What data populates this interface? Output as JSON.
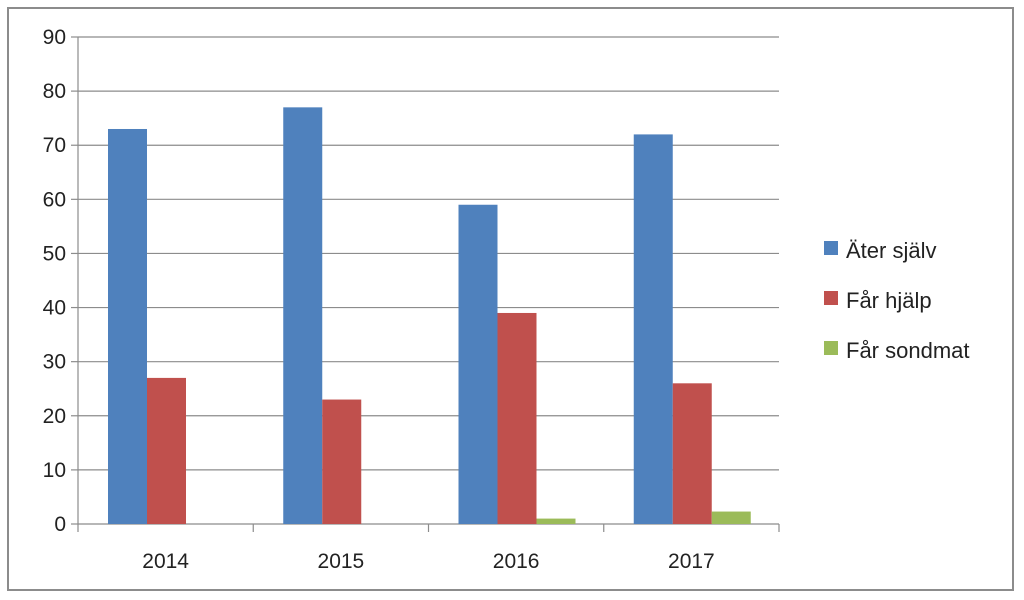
{
  "chart_data": {
    "type": "bar",
    "title": "",
    "xlabel": "",
    "ylabel": "",
    "categories": [
      "2014",
      "2015",
      "2016",
      "2017"
    ],
    "series": [
      {
        "name": "Äter själv",
        "color": "#4f81bd",
        "values": [
          73,
          77,
          59,
          72
        ]
      },
      {
        "name": "Får hjälp",
        "color": "#c0504d",
        "values": [
          27,
          23,
          39,
          26
        ]
      },
      {
        "name": "Får sondmat",
        "color": "#9bbb59",
        "values": [
          0,
          0,
          1,
          2.3
        ]
      }
    ],
    "ylim": [
      0,
      90
    ],
    "yticks": [
      0,
      10,
      20,
      30,
      40,
      50,
      60,
      70,
      80,
      90
    ],
    "grid": true,
    "legend": "right"
  }
}
